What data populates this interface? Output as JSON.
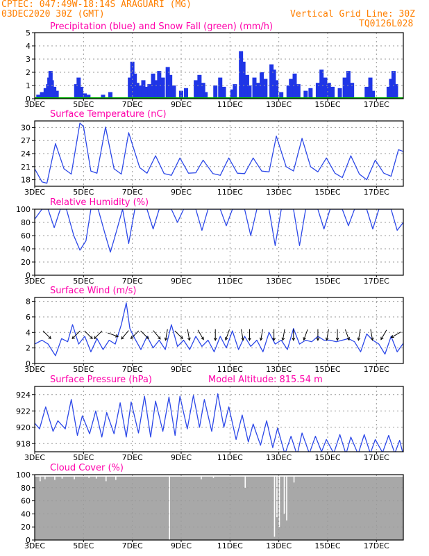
{
  "header": {
    "line1": "CPTEC:   047:49W-18:14S   ARAGUARI (MG)",
    "line2": "03DEC2020 30Z (GMT)",
    "grid_note": "Vertical Grid Line: 30Z",
    "code": "TQ0126L028"
  },
  "colors": {
    "header": "#ff7f00",
    "title": "#ff00aa",
    "line": "#2c48e8",
    "bar": "#1f35e6",
    "snow": "#00b000",
    "cloud": "#a8a8a8",
    "grid": "#9a9a9a"
  },
  "x_axis": {
    "tick_labels": [
      "3DEC",
      "5DEC",
      "7DEC",
      "9DEC",
      "11DEC",
      "13DEC",
      "15DEC",
      "17DEC"
    ],
    "tick_days": [
      3,
      5,
      7,
      9,
      11,
      13,
      15,
      17
    ],
    "range_days": [
      3,
      18.1
    ]
  },
  "chart_data": [
    {
      "id": "precip",
      "type": "bar",
      "title": "Precipitation (blue) and Snow Fall (green) (mm/h)",
      "ylim": [
        0,
        5
      ],
      "yticks": [
        0,
        1,
        2,
        3,
        4,
        5
      ],
      "grid": true,
      "series": [
        {
          "name": "Precipitation",
          "events": [
            [
              3.15,
              0.3
            ],
            [
              3.3,
              0.5
            ],
            [
              3.45,
              0.8
            ],
            [
              3.55,
              1.1
            ],
            [
              3.6,
              1.6
            ],
            [
              3.65,
              2.1
            ],
            [
              3.7,
              1.4
            ],
            [
              3.8,
              0.9
            ],
            [
              3.9,
              0.6
            ],
            [
              4.7,
              1.1
            ],
            [
              4.8,
              1.6
            ],
            [
              4.9,
              0.9
            ],
            [
              5.05,
              0.4
            ],
            [
              5.2,
              0.3
            ],
            [
              5.8,
              0.3
            ],
            [
              6.1,
              0.5
            ],
            [
              6.9,
              1.6
            ],
            [
              7.0,
              2.8
            ],
            [
              7.1,
              1.9
            ],
            [
              7.2,
              1.2
            ],
            [
              7.3,
              1.0
            ],
            [
              7.45,
              1.4
            ],
            [
              7.55,
              0.9
            ],
            [
              7.7,
              1.1
            ],
            [
              7.85,
              1.9
            ],
            [
              8.0,
              1.4
            ],
            [
              8.1,
              2.1
            ],
            [
              8.25,
              1.6
            ],
            [
              8.45,
              2.4
            ],
            [
              8.55,
              1.8
            ],
            [
              8.7,
              1.0
            ],
            [
              9.0,
              0.6
            ],
            [
              9.2,
              0.8
            ],
            [
              9.6,
              1.4
            ],
            [
              9.75,
              1.8
            ],
            [
              9.9,
              1.2
            ],
            [
              10.0,
              0.5
            ],
            [
              10.4,
              1.0
            ],
            [
              10.6,
              1.6
            ],
            [
              10.75,
              0.9
            ],
            [
              11.1,
              0.7
            ],
            [
              11.2,
              1.1
            ],
            [
              11.45,
              3.6
            ],
            [
              11.55,
              2.8
            ],
            [
              11.7,
              1.8
            ],
            [
              11.8,
              1.0
            ],
            [
              12.0,
              1.6
            ],
            [
              12.15,
              1.2
            ],
            [
              12.3,
              2.0
            ],
            [
              12.45,
              1.5
            ],
            [
              12.7,
              2.6
            ],
            [
              12.8,
              2.2
            ],
            [
              12.9,
              1.4
            ],
            [
              13.1,
              0.5
            ],
            [
              13.4,
              1.0
            ],
            [
              13.5,
              1.5
            ],
            [
              13.65,
              1.9
            ],
            [
              13.8,
              1.1
            ],
            [
              14.1,
              0.6
            ],
            [
              14.3,
              0.8
            ],
            [
              14.6,
              1.2
            ],
            [
              14.75,
              2.2
            ],
            [
              14.9,
              1.6
            ],
            [
              15.05,
              1.2
            ],
            [
              15.2,
              0.9
            ],
            [
              15.5,
              0.8
            ],
            [
              15.7,
              1.6
            ],
            [
              15.85,
              2.1
            ],
            [
              16.0,
              1.2
            ],
            [
              16.6,
              0.9
            ],
            [
              16.75,
              1.6
            ],
            [
              16.85,
              0.6
            ],
            [
              17.5,
              0.9
            ],
            [
              17.6,
              1.5
            ],
            [
              17.7,
              2.1
            ],
            [
              17.8,
              1.1
            ]
          ]
        },
        {
          "name": "Snow Fall",
          "values_constant": 0
        }
      ]
    },
    {
      "id": "temp",
      "type": "line",
      "title": "Surface Temperature (nC)",
      "ylim": [
        16.5,
        31.5
      ],
      "yticks": [
        18,
        21,
        24,
        27,
        30
      ],
      "grid": true,
      "series": [
        {
          "name": "Surface Temperature",
          "x": [
            3.0,
            3.3,
            3.5,
            3.85,
            4.2,
            4.5,
            4.85,
            5.0,
            5.3,
            5.55,
            5.9,
            6.25,
            6.55,
            6.85,
            7.3,
            7.6,
            7.95,
            8.3,
            8.6,
            8.95,
            9.3,
            9.6,
            9.9,
            10.3,
            10.6,
            10.95,
            11.3,
            11.6,
            11.95,
            12.3,
            12.6,
            12.9,
            13.3,
            13.6,
            13.95,
            14.3,
            14.6,
            14.95,
            15.3,
            15.6,
            15.95,
            16.3,
            16.6,
            16.95,
            17.3,
            17.6,
            17.9,
            18.1
          ],
          "y": [
            20.5,
            17.5,
            17.2,
            26.3,
            20.5,
            19.3,
            31.0,
            30.2,
            20.0,
            19.5,
            30.1,
            20.5,
            19.3,
            28.8,
            20.8,
            19.5,
            23.5,
            19.4,
            19.0,
            23.0,
            19.5,
            19.6,
            22.5,
            19.4,
            19.0,
            23.0,
            19.5,
            19.4,
            23.0,
            20.0,
            19.8,
            28.0,
            21.0,
            20.0,
            27.5,
            21.0,
            19.8,
            23.0,
            19.5,
            18.5,
            23.5,
            19.3,
            18.0,
            22.5,
            19.5,
            18.8,
            24.9,
            24.5
          ]
        }
      ]
    },
    {
      "id": "rh",
      "type": "line",
      "title": "Relative Humidity (%)",
      "ylim": [
        0,
        100
      ],
      "yticks": [
        0,
        20,
        40,
        60,
        80,
        100
      ],
      "grid": true,
      "series": [
        {
          "name": "Relative Humidity",
          "x": [
            3.0,
            3.3,
            3.55,
            3.8,
            4.05,
            4.3,
            4.6,
            4.85,
            5.1,
            5.3,
            5.6,
            5.9,
            6.1,
            6.3,
            6.6,
            6.85,
            7.1,
            7.35,
            7.6,
            7.85,
            8.1,
            8.35,
            8.6,
            8.85,
            9.1,
            9.35,
            9.6,
            9.85,
            10.1,
            10.35,
            10.6,
            10.85,
            11.1,
            11.35,
            11.6,
            11.85,
            12.1,
            12.35,
            12.6,
            12.85,
            13.1,
            13.35,
            13.6,
            13.85,
            14.1,
            14.35,
            14.6,
            14.85,
            15.1,
            15.35,
            15.6,
            15.85,
            16.1,
            16.35,
            16.6,
            16.85,
            17.1,
            17.35,
            17.6,
            17.85,
            18.1
          ],
          "y": [
            85,
            100,
            100,
            72,
            100,
            100,
            60,
            38,
            52,
            100,
            100,
            60,
            35,
            60,
            100,
            48,
            100,
            100,
            100,
            70,
            100,
            100,
            100,
            80,
            100,
            100,
            100,
            68,
            100,
            100,
            100,
            75,
            100,
            100,
            100,
            60,
            100,
            100,
            100,
            45,
            100,
            100,
            100,
            45,
            100,
            100,
            100,
            70,
            100,
            100,
            100,
            75,
            100,
            100,
            100,
            70,
            100,
            100,
            100,
            68,
            80
          ]
        }
      ]
    },
    {
      "id": "wind",
      "type": "line",
      "title": "Surface Wind (m/s)",
      "ylim": [
        0,
        8.5
      ],
      "yticks": [
        0,
        2,
        4,
        6,
        8
      ],
      "grid": true,
      "series": [
        {
          "name": "Surface Wind Speed",
          "x": [
            3.0,
            3.3,
            3.55,
            3.85,
            4.1,
            4.35,
            4.55,
            4.8,
            5.05,
            5.3,
            5.55,
            5.8,
            6.05,
            6.3,
            6.55,
            6.75,
            6.9,
            7.1,
            7.35,
            7.6,
            7.85,
            8.1,
            8.35,
            8.6,
            8.85,
            9.1,
            9.35,
            9.6,
            9.85,
            10.1,
            10.35,
            10.6,
            10.85,
            11.1,
            11.35,
            11.6,
            11.85,
            12.1,
            12.35,
            12.6,
            12.85,
            13.1,
            13.35,
            13.6,
            13.85,
            14.1,
            14.35,
            14.6,
            14.85,
            15.1,
            15.35,
            15.6,
            15.85,
            16.1,
            16.35,
            16.6,
            16.85,
            17.1,
            17.35,
            17.6,
            17.85,
            18.1
          ],
          "y": [
            2.5,
            3.0,
            2.5,
            1.0,
            3.2,
            2.8,
            5.0,
            2.5,
            3.5,
            1.5,
            3.2,
            1.8,
            3.0,
            2.5,
            5.0,
            7.8,
            4.5,
            3.2,
            1.8,
            3.5,
            2.0,
            3.0,
            1.8,
            5.0,
            2.2,
            3.0,
            1.8,
            3.5,
            2.2,
            3.0,
            1.5,
            3.5,
            2.0,
            4.2,
            1.8,
            3.5,
            2.2,
            3.0,
            1.5,
            4.0,
            2.5,
            3.0,
            1.8,
            4.5,
            2.5,
            3.0,
            2.8,
            3.5,
            3.0,
            3.0,
            2.8,
            3.0,
            3.2,
            2.8,
            1.5,
            3.8,
            3.0,
            2.5,
            1.2,
            3.5,
            1.5,
            2.6
          ]
        }
      ],
      "wind_arrows": [
        [
          3.5,
          45
        ],
        [
          4.7,
          135
        ],
        [
          5.2,
          45
        ],
        [
          5.6,
          135
        ],
        [
          6.2,
          20
        ],
        [
          6.7,
          130
        ],
        [
          7.1,
          135
        ],
        [
          7.5,
          45
        ],
        [
          8.0,
          50
        ],
        [
          8.4,
          100
        ],
        [
          8.9,
          45
        ],
        [
          9.3,
          80
        ],
        [
          9.8,
          60
        ],
        [
          10.4,
          90
        ],
        [
          10.9,
          110
        ],
        [
          11.5,
          80
        ],
        [
          11.8,
          90
        ],
        [
          12.3,
          100
        ],
        [
          12.8,
          90
        ],
        [
          13.2,
          100
        ],
        [
          13.6,
          90
        ],
        [
          14.1,
          110
        ],
        [
          14.6,
          90
        ],
        [
          15.0,
          100
        ],
        [
          15.4,
          90
        ],
        [
          15.8,
          70
        ],
        [
          16.3,
          100
        ],
        [
          16.8,
          80
        ],
        [
          17.3,
          120
        ],
        [
          17.8,
          150
        ]
      ]
    },
    {
      "id": "pressure",
      "type": "line",
      "title": "Surface Pressure (hPa)",
      "annotation": "Model Altitude: 815.54 m",
      "ylim": [
        917,
        925
      ],
      "yticks": [
        918,
        920,
        922,
        924
      ],
      "grid": true,
      "series": [
        {
          "name": "Surface Pressure",
          "x": [
            3.0,
            3.2,
            3.45,
            3.75,
            3.95,
            4.25,
            4.5,
            4.75,
            4.95,
            5.25,
            5.5,
            5.75,
            5.95,
            6.25,
            6.5,
            6.75,
            6.95,
            7.25,
            7.5,
            7.75,
            7.95,
            8.25,
            8.5,
            8.75,
            8.95,
            9.25,
            9.5,
            9.75,
            9.95,
            10.25,
            10.5,
            10.75,
            10.95,
            11.25,
            11.5,
            11.75,
            11.95,
            12.25,
            12.5,
            12.75,
            12.95,
            13.25,
            13.5,
            13.75,
            13.95,
            14.25,
            14.5,
            14.75,
            14.95,
            15.25,
            15.5,
            15.75,
            15.95,
            16.25,
            16.5,
            16.75,
            16.95,
            17.25,
            17.5,
            17.75,
            17.95,
            18.1
          ],
          "y": [
            920.5,
            919.8,
            922.5,
            919.5,
            920.8,
            919.8,
            923.4,
            919.0,
            921.4,
            919.2,
            922.0,
            918.8,
            921.8,
            919.2,
            923.0,
            918.8,
            923.1,
            919.3,
            923.8,
            918.8,
            923.2,
            919.5,
            923.7,
            919.0,
            923.8,
            919.8,
            923.9,
            920.0,
            923.4,
            919.5,
            924.1,
            920.0,
            922.5,
            918.5,
            921.5,
            918.2,
            920.4,
            917.8,
            920.8,
            917.5,
            919.9,
            916.7,
            918.9,
            916.6,
            919.3,
            916.8,
            918.9,
            917.0,
            918.5,
            916.8,
            919.1,
            916.7,
            918.8,
            916.7,
            919.1,
            916.8,
            918.5,
            916.9,
            919.0,
            916.8,
            918.4,
            916.6
          ]
        }
      ]
    },
    {
      "id": "cloud",
      "type": "area",
      "title": "Cloud Cover (%)",
      "ylim": [
        0,
        100
      ],
      "yticks": [
        0,
        20,
        40,
        60,
        80,
        100
      ],
      "grid": true,
      "series": [
        {
          "name": "Cloud Cover",
          "base": 97,
          "dips": [
            [
              3.2,
              90
            ],
            [
              3.4,
              93
            ],
            [
              3.8,
              92
            ],
            [
              4.1,
              94
            ],
            [
              4.6,
              93
            ],
            [
              5.2,
              95
            ],
            [
              5.5,
              94
            ],
            [
              5.9,
              90
            ],
            [
              6.3,
              92
            ],
            [
              8.5,
              0
            ],
            [
              9.8,
              93
            ],
            [
              10.3,
              95
            ],
            [
              11.6,
              80
            ],
            [
              12.8,
              5
            ],
            [
              12.9,
              35
            ],
            [
              13.0,
              20
            ],
            [
              13.2,
              40
            ],
            [
              13.3,
              30
            ],
            [
              13.6,
              88
            ]
          ]
        }
      ]
    }
  ]
}
